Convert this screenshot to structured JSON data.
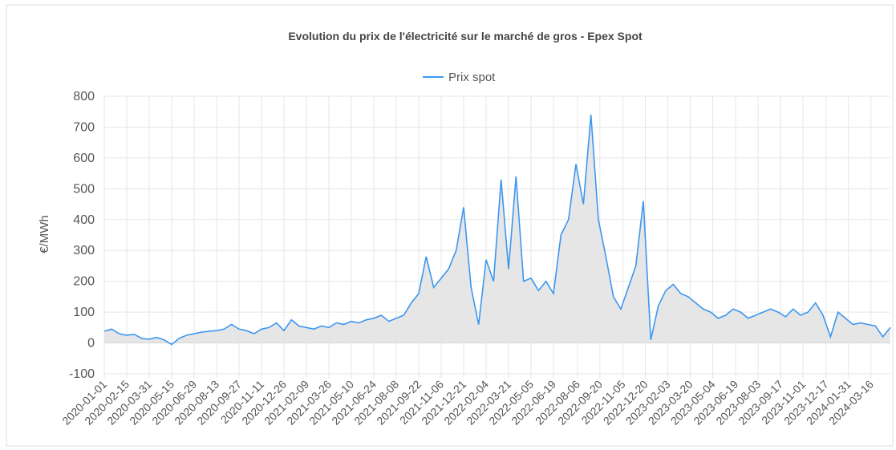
{
  "chart_data": {
    "type": "line",
    "title": "Evolution du prix de l'électricité sur le marché de gros - Epex Spot",
    "y_label": "€/MWh",
    "series": [
      {
        "name": "Prix spot",
        "color": "#3c97f0",
        "fill": "#e3e3e3",
        "values": [
          38,
          45,
          30,
          25,
          28,
          15,
          12,
          18,
          10,
          -5,
          15,
          25,
          30,
          35,
          38,
          40,
          45,
          60,
          45,
          40,
          30,
          45,
          50,
          65,
          40,
          75,
          55,
          50,
          45,
          55,
          50,
          65,
          60,
          70,
          65,
          75,
          80,
          90,
          70,
          80,
          90,
          130,
          160,
          280,
          180,
          210,
          240,
          300,
          440,
          180,
          60,
          270,
          200,
          530,
          240,
          540,
          200,
          210,
          170,
          200,
          160,
          350,
          400,
          580,
          450,
          740,
          400,
          280,
          150,
          110,
          180,
          250,
          460,
          10,
          120,
          170,
          190,
          160,
          150,
          130,
          110,
          100,
          80,
          90,
          110,
          100,
          80,
          90,
          100,
          110,
          100,
          85,
          110,
          90,
          100,
          130,
          90,
          20,
          100,
          80,
          60,
          65,
          60,
          55,
          20,
          50
        ]
      }
    ],
    "x": [
      "2020-01-01",
      "2020-01-16",
      "2020-01-31",
      "2020-02-15",
      "2020-03-01",
      "2020-03-16",
      "2020-03-31",
      "2020-04-15",
      "2020-04-30",
      "2020-05-15",
      "2020-05-30",
      "2020-06-14",
      "2020-06-29",
      "2020-07-14",
      "2020-07-29",
      "2020-08-13",
      "2020-08-28",
      "2020-09-12",
      "2020-09-27",
      "2020-10-12",
      "2020-10-27",
      "2020-11-11",
      "2020-11-26",
      "2020-12-11",
      "2020-12-26",
      "2021-01-10",
      "2021-01-25",
      "2021-02-09",
      "2021-02-24",
      "2021-03-11",
      "2021-03-26",
      "2021-04-10",
      "2021-04-25",
      "2021-05-10",
      "2021-05-25",
      "2021-06-09",
      "2021-06-24",
      "2021-07-09",
      "2021-07-24",
      "2021-08-08",
      "2021-08-23",
      "2021-09-07",
      "2021-09-22",
      "2021-10-07",
      "2021-10-22",
      "2021-11-06",
      "2021-11-21",
      "2021-12-06",
      "2021-12-21",
      "2022-01-05",
      "2022-01-20",
      "2022-02-04",
      "2022-02-19",
      "2022-03-06",
      "2022-03-21",
      "2022-04-05",
      "2022-04-20",
      "2022-05-05",
      "2022-05-20",
      "2022-06-04",
      "2022-06-19",
      "2022-07-04",
      "2022-07-19",
      "2022-08-03",
      "2022-08-18",
      "2022-09-02",
      "2022-09-17",
      "2022-10-02",
      "2022-10-17",
      "2022-11-01",
      "2022-11-16",
      "2022-12-01",
      "2022-12-16",
      "2022-12-31",
      "2023-01-15",
      "2023-01-30",
      "2023-02-14",
      "2023-03-01",
      "2023-03-16",
      "2023-03-31",
      "2023-04-15",
      "2023-04-30",
      "2023-05-15",
      "2023-05-30",
      "2023-06-14",
      "2023-06-29",
      "2023-07-14",
      "2023-07-29",
      "2023-08-13",
      "2023-08-28",
      "2023-09-12",
      "2023-09-27",
      "2023-10-12",
      "2023-10-27",
      "2023-11-11",
      "2023-11-26",
      "2023-12-11",
      "2023-12-26",
      "2024-01-10",
      "2024-01-25",
      "2024-02-09",
      "2024-02-24",
      "2024-03-10",
      "2024-03-25",
      "2024-04-09",
      "2024-04-24"
    ],
    "xlim": [
      "2020-01-01",
      "2024-04-24"
    ],
    "xticks": [
      "2020-01-01",
      "2020-02-15",
      "2020-03-31",
      "2020-05-15",
      "2020-06-29",
      "2020-08-13",
      "2020-09-27",
      "2020-11-11",
      "2020-12-26",
      "2021-02-09",
      "2021-03-26",
      "2021-05-10",
      "2021-06-24",
      "2021-08-08",
      "2021-09-22",
      "2021-11-06",
      "2021-12-21",
      "2022-02-04",
      "2022-03-21",
      "2022-05-05",
      "2022-06-19",
      "2022-08-06",
      "2022-09-20",
      "2022-11-05",
      "2022-12-20",
      "2023-02-03",
      "2023-03-20",
      "2023-05-04",
      "2023-06-19",
      "2023-08-03",
      "2023-09-17",
      "2023-11-01",
      "2023-12-17",
      "2024-01-31",
      "2024-03-16"
    ],
    "ylim": [
      -100,
      800
    ],
    "yticks": [
      -100,
      0,
      100,
      200,
      300,
      400,
      500,
      600,
      700,
      800
    ],
    "grid": true
  }
}
